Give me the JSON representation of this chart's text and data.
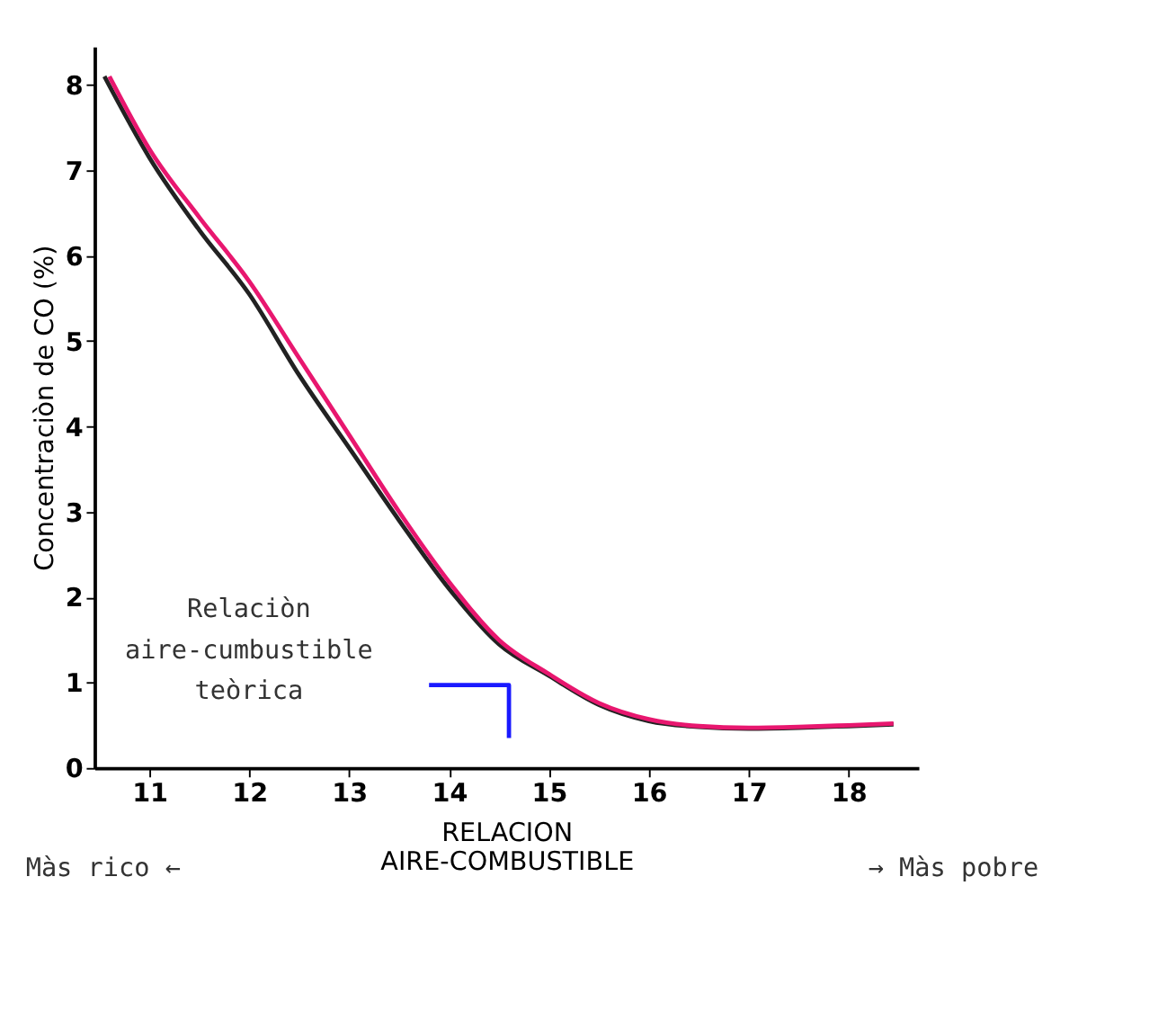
{
  "chart_data": {
    "type": "line",
    "xlabel": "RELACION\nAIRE-COMBUSTIBLE",
    "ylabel": "Concentraciòn de CO (%)",
    "xlim": [
      10.45,
      18.7
    ],
    "xticks": [
      11,
      12,
      13,
      14,
      15,
      16,
      17,
      18
    ],
    "ylim": [
      0,
      8.45
    ],
    "yticks": [
      0,
      1,
      2,
      3,
      4,
      5,
      6,
      7,
      8
    ],
    "grid": false,
    "marker": "none",
    "line_style": "solid",
    "series": [
      {
        "color": "#222222",
        "x": [
          10.55,
          11,
          11.5,
          12,
          12.5,
          13,
          13.5,
          14,
          14.5,
          15,
          15.5,
          16,
          16.5,
          17,
          17.5,
          18,
          18.45
        ],
        "values": [
          8.1,
          7.15,
          6.3,
          5.55,
          4.6,
          3.75,
          2.9,
          2.1,
          1.45,
          1.08,
          0.74,
          0.55,
          0.48,
          0.46,
          0.47,
          0.49,
          0.51
        ]
      },
      {
        "color": "#e8176f",
        "x": [
          10.6,
          11,
          11.5,
          12,
          12.5,
          13,
          13.5,
          14,
          14.5,
          15,
          15.5,
          16,
          16.5,
          17,
          17.5,
          18,
          18.45
        ],
        "values": [
          8.1,
          7.25,
          6.45,
          5.7,
          4.8,
          3.9,
          3.0,
          2.18,
          1.5,
          1.1,
          0.76,
          0.57,
          0.49,
          0.47,
          0.48,
          0.5,
          0.52
        ]
      },
      {
        "color": "#1a1aff",
        "x": [
          13.8,
          14.6,
          14.6
        ],
        "values": [
          0.97,
          0.97,
          0.35
        ]
      }
    ],
    "annotations": [
      "Relaciòn\naire-cumbustible\nteòrica",
      "Màs rico ←",
      "→ Màs pobre"
    ]
  }
}
